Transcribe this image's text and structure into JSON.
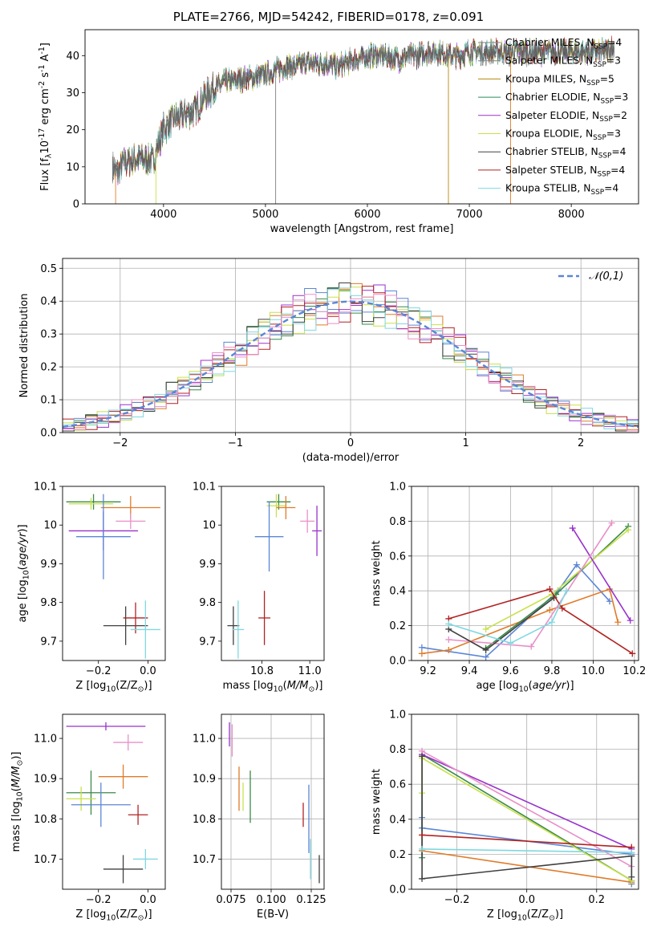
{
  "figure": {
    "title": "PLATE=2766, MJD=54242, FIBERID=0178, z=0.091"
  },
  "chart_data": [
    {
      "id": "spectrum",
      "type": "line",
      "xlabel": "wavelength [Angstrom, rest frame]",
      "ylabel": "Flux [f$_\\lambda$10$^{-17}$ erg cm$^{-2}$ s$^{-1}$ A$^{-1}$]",
      "xlim": [
        3230,
        8660
      ],
      "ylim": [
        0,
        47
      ],
      "xticks": [
        4000,
        5000,
        6000,
        7000,
        8000
      ],
      "yticks": [
        0,
        10,
        20,
        30,
        40
      ],
      "legend_position": "top-right",
      "observed": {
        "wavelength": [
          3500,
          3550,
          3600,
          3700,
          3800,
          3900,
          4000,
          4100,
          4200,
          4300,
          4400,
          4500,
          4600,
          4700,
          4800,
          4900,
          5000,
          5100,
          5200,
          5300,
          5400,
          5500,
          5600,
          5700,
          5800,
          5900,
          6000,
          6100,
          6200,
          6300,
          6400,
          6500,
          6600,
          6700,
          6800,
          6900,
          7000,
          7100,
          7200,
          7300,
          7400,
          7500,
          7600,
          7700,
          7800,
          7900,
          8000,
          8100,
          8200,
          8300,
          8400
        ],
        "flux": [
          10,
          8,
          11,
          12,
          12,
          12,
          20,
          23,
          24,
          25,
          29,
          31,
          33,
          33,
          34,
          34,
          35,
          36,
          37,
          37,
          38,
          38,
          38,
          37,
          38,
          39,
          40,
          40,
          40,
          39,
          40,
          40,
          41,
          41,
          40,
          40,
          41,
          41,
          41,
          41,
          41,
          41,
          41,
          41,
          41,
          41,
          41,
          41,
          41,
          41,
          42
        ]
      },
      "series": [
        {
          "name": "Chabrier MILES, N$_{SSP}$=4",
          "color": "#7f7f7f"
        },
        {
          "name": "Salpeter MILES, N$_{SSP}$=3",
          "color": "#7f7f7f"
        },
        {
          "name": "Kroupa MILES, N$_{SSP}$=5",
          "color": "#b8860b"
        },
        {
          "name": "Chabrier ELODIE, N$_{SSP}$=3",
          "color": "#2e8b57"
        },
        {
          "name": "Salpeter ELODIE, N$_{SSP}$=2",
          "color": "#9932cc"
        },
        {
          "name": "Kroupa ELODIE, N$_{SSP}$=3",
          "color": "#c8e04a"
        },
        {
          "name": "Chabrier STELIB, N$_{SSP}$=4",
          "color": "#404040"
        },
        {
          "name": "Salpeter STELIB, N$_{SSP}$=4",
          "color": "#b22222"
        },
        {
          "name": "Kroupa STELIB, N$_{SSP}$=4",
          "color": "#7fd8e0"
        }
      ]
    },
    {
      "id": "residuals",
      "type": "histogram",
      "xlabel": "(data-model)/error",
      "ylabel": "Normed distribution",
      "xlim": [
        -2.5,
        2.5
      ],
      "ylim": [
        0,
        0.53
      ],
      "xticks": [
        -2,
        -1,
        0,
        1,
        2
      ],
      "yticks": [
        0.0,
        0.1,
        0.2,
        0.3,
        0.4,
        0.5
      ],
      "grid": true,
      "legend_position": "top-right",
      "reference_curve": {
        "name": "$\\mathcal{N}(0,1)$",
        "color": "#5b86d6",
        "style": "dashed"
      },
      "bin_width": 0.1,
      "series": [
        {
          "color": "#e07b2a",
          "offset": 0.3
        },
        {
          "color": "#5b86d6",
          "offset": -0.6
        },
        {
          "color": "#3a8a4a",
          "offset": 1.1
        },
        {
          "color": "#9932cc",
          "offset": 2.0
        },
        {
          "color": "#c8e04a",
          "offset": -1.4
        },
        {
          "color": "#404040",
          "offset": 0.9
        },
        {
          "color": "#b22222",
          "offset": -2.3
        },
        {
          "color": "#7fd8e0",
          "offset": 2.7
        },
        {
          "color": "#e890c8",
          "offset": -0.2
        }
      ]
    },
    {
      "id": "age_vs_Z",
      "type": "errorbar",
      "xlabel": "Z [log$_{10}$(Z/Z$_\\odot$)]",
      "ylabel": "age  [log$_{10}$($age/yr$)]",
      "xlim": [
        -0.345,
        0.07
      ],
      "ylim": [
        9.65,
        10.1
      ],
      "xticks": [
        -0.2,
        0.0
      ],
      "xticklabels": [
        "−0.2",
        "0.0"
      ],
      "yticks": [
        9.7,
        9.8,
        9.9,
        10.0,
        10.1
      ],
      "points": [
        {
          "x": -0.22,
          "xerr": 0.11,
          "y": 10.06,
          "yerr": 0.02,
          "color": "#3a8a4a"
        },
        {
          "x": -0.23,
          "xerr": 0.09,
          "y": 10.055,
          "yerr": 0.015,
          "color": "#c8e04a"
        },
        {
          "x": -0.07,
          "xerr": 0.12,
          "y": 10.045,
          "yerr": 0.03,
          "color": "#e07b2a"
        },
        {
          "x": -0.07,
          "xerr": 0.06,
          "y": 10.01,
          "yerr": 0.02,
          "color": "#e890c8"
        },
        {
          "x": -0.18,
          "xerr": 0.14,
          "y": 9.985,
          "yerr": 0.05,
          "color": "#9932cc"
        },
        {
          "x": -0.18,
          "xerr": 0.11,
          "y": 9.97,
          "yerr": 0.11,
          "color": "#5b86d6"
        },
        {
          "x": -0.09,
          "xerr": 0.09,
          "y": 9.74,
          "yerr": 0.05,
          "color": "#404040"
        },
        {
          "x": -0.05,
          "xerr": 0.05,
          "y": 9.76,
          "yerr": 0.04,
          "color": "#b22222"
        },
        {
          "x": -0.01,
          "xerr": 0.06,
          "y": 9.73,
          "yerr": 0.075,
          "color": "#7fd8e0"
        }
      ]
    },
    {
      "id": "age_vs_mass",
      "type": "errorbar",
      "xlabel": "mass [log$_{10}$($M/M_\\odot$)]",
      "ylabel": "",
      "xlim": [
        10.63,
        11.06
      ],
      "ylim": [
        9.65,
        10.1
      ],
      "xticks": [
        10.8,
        11.0
      ],
      "xticklabels": [
        "10.8",
        "11.0"
      ],
      "yticks": [
        9.7,
        9.8,
        9.9,
        10.0,
        10.1
      ],
      "points": [
        {
          "x": 10.87,
          "xerr": 0.05,
          "y": 10.06,
          "yerr": 0.02,
          "color": "#3a8a4a"
        },
        {
          "x": 10.86,
          "xerr": 0.04,
          "y": 10.05,
          "yerr": 0.03,
          "color": "#c8e04a"
        },
        {
          "x": 10.9,
          "xerr": 0.04,
          "y": 10.045,
          "yerr": 0.03,
          "color": "#e07b2a"
        },
        {
          "x": 10.99,
          "xerr": 0.03,
          "y": 10.01,
          "yerr": 0.03,
          "color": "#e890c8"
        },
        {
          "x": 11.03,
          "xerr": 0.02,
          "y": 9.985,
          "yerr": 0.065,
          "color": "#9932cc"
        },
        {
          "x": 10.83,
          "xerr": 0.06,
          "y": 9.97,
          "yerr": 0.09,
          "color": "#5b86d6"
        },
        {
          "x": 10.68,
          "xerr": 0.025,
          "y": 9.74,
          "yerr": 0.05,
          "color": "#404040"
        },
        {
          "x": 10.81,
          "xerr": 0.025,
          "y": 9.76,
          "yerr": 0.07,
          "color": "#b22222"
        },
        {
          "x": 10.7,
          "xerr": 0.025,
          "y": 9.73,
          "yerr": 0.075,
          "color": "#7fd8e0"
        }
      ]
    },
    {
      "id": "weight_vs_age",
      "type": "line",
      "xlabel": "age  [log$_{10}$($age/yr$)]",
      "ylabel": "mass weight",
      "xlim": [
        9.12,
        10.22
      ],
      "ylim": [
        0.0,
        1.0
      ],
      "xticks": [
        9.2,
        9.4,
        9.6,
        9.8,
        10.0,
        10.2
      ],
      "xticklabels": [
        "9.2",
        "9.4",
        "9.6",
        "9.8",
        "10.0",
        "10.2"
      ],
      "yticks": [
        0.0,
        0.2,
        0.4,
        0.6,
        0.8,
        1.0
      ],
      "yticklabels": [
        "0.0",
        "0.2",
        "0.4",
        "0.6",
        "0.8",
        "1.0"
      ],
      "grid": true,
      "series": [
        {
          "color": "#5b86d6",
          "x": [
            9.17,
            9.48,
            9.83,
            9.92,
            10.08
          ],
          "y": [
            0.075,
            0.02,
            0.4,
            0.55,
            0.34
          ]
        },
        {
          "color": "#e07b2a",
          "x": [
            9.17,
            9.3,
            9.79,
            10.08,
            10.12
          ],
          "y": [
            0.04,
            0.06,
            0.29,
            0.41,
            0.22
          ]
        },
        {
          "color": "#3a8a4a",
          "x": [
            9.48,
            9.82,
            10.17
          ],
          "y": [
            0.07,
            0.38,
            0.77
          ]
        },
        {
          "color": "#c8e04a",
          "x": [
            9.48,
            9.8,
            10.17
          ],
          "y": [
            0.18,
            0.38,
            0.75
          ]
        },
        {
          "color": "#9932cc",
          "x": [
            9.9,
            10.18
          ],
          "y": [
            0.76,
            0.23
          ]
        },
        {
          "color": "#e890c8",
          "x": [
            9.3,
            9.7,
            10.09
          ],
          "y": [
            0.12,
            0.08,
            0.79
          ]
        },
        {
          "color": "#404040",
          "x": [
            9.3,
            9.48,
            9.81
          ],
          "y": [
            0.18,
            0.06,
            0.36
          ]
        },
        {
          "color": "#b22222",
          "x": [
            9.3,
            9.79,
            9.85,
            10.19
          ],
          "y": [
            0.24,
            0.41,
            0.3,
            0.04
          ]
        },
        {
          "color": "#7fd8e0",
          "x": [
            9.3,
            9.6,
            9.8,
            9.87
          ],
          "y": [
            0.21,
            0.1,
            0.22,
            0.4
          ]
        }
      ]
    },
    {
      "id": "mass_vs_Z",
      "type": "errorbar",
      "xlabel": "Z [log$_{10}$(Z/Z$_\\odot$)]",
      "ylabel": "mass [log$_{10}$($M/M_\\odot$)]",
      "xlim": [
        -0.345,
        0.07
      ],
      "ylim": [
        10.625,
        11.06
      ],
      "xticks": [
        -0.2,
        0.0
      ],
      "xticklabels": [
        "−0.2",
        "0.0"
      ],
      "yticks": [
        10.7,
        10.8,
        10.9,
        11.0
      ],
      "yticklabels": [
        "10.7",
        "10.8",
        "10.9",
        "11.0"
      ],
      "points": [
        {
          "x": -0.17,
          "xerr": 0.16,
          "y": 11.03,
          "yerr": 0.01,
          "color": "#9932cc"
        },
        {
          "x": -0.08,
          "xerr": 0.06,
          "y": 10.99,
          "yerr": 0.02,
          "color": "#e890c8"
        },
        {
          "x": -0.1,
          "xerr": 0.1,
          "y": 10.905,
          "yerr": 0.03,
          "color": "#e07b2a"
        },
        {
          "x": -0.23,
          "xerr": 0.1,
          "y": 10.865,
          "yerr": 0.055,
          "color": "#3a8a4a"
        },
        {
          "x": -0.27,
          "xerr": 0.06,
          "y": 10.85,
          "yerr": 0.03,
          "color": "#c8e04a"
        },
        {
          "x": -0.19,
          "xerr": 0.12,
          "y": 10.835,
          "yerr": 0.055,
          "color": "#5b86d6"
        },
        {
          "x": -0.04,
          "xerr": 0.04,
          "y": 10.81,
          "yerr": 0.025,
          "color": "#b22222"
        },
        {
          "x": -0.1,
          "xerr": 0.08,
          "y": 10.675,
          "yerr": 0.035,
          "color": "#404040"
        },
        {
          "x": -0.01,
          "xerr": 0.05,
          "y": 10.7,
          "yerr": 0.025,
          "color": "#7fd8e0"
        }
      ]
    },
    {
      "id": "mass_vs_ebv",
      "type": "errorbar",
      "xlabel": "E(B-V)",
      "ylabel": "",
      "xlim": [
        0.069,
        0.133
      ],
      "ylim": [
        10.625,
        11.06
      ],
      "xticks": [
        0.075,
        0.1,
        0.125
      ],
      "xticklabels": [
        "0.075",
        "0.100",
        "0.125"
      ],
      "yticks": [
        10.7,
        10.8,
        10.9,
        11.0
      ],
      "yticklabels": [
        "10.7",
        "10.8",
        "10.9",
        "11.0"
      ],
      "grid": true,
      "points": [
        {
          "x": 0.074,
          "y": 11.01,
          "yerr": 0.03,
          "color": "#9932cc"
        },
        {
          "x": 0.0757,
          "y": 10.995,
          "yerr": 0.04,
          "color": "#e890c8"
        },
        {
          "x": 0.08,
          "y": 10.875,
          "yerr": 0.055,
          "color": "#e07b2a"
        },
        {
          "x": 0.0825,
          "y": 10.855,
          "yerr": 0.035,
          "color": "#c8e04a"
        },
        {
          "x": 0.087,
          "y": 10.855,
          "yerr": 0.065,
          "color": "#3a8a4a"
        },
        {
          "x": 0.12,
          "y": 10.81,
          "yerr": 0.03,
          "color": "#b22222"
        },
        {
          "x": 0.1235,
          "y": 10.8,
          "yerr": 0.085,
          "color": "#5b86d6"
        },
        {
          "x": 0.1245,
          "y": 10.7,
          "yerr": 0.05,
          "color": "#7fd8e0"
        },
        {
          "x": 0.13,
          "y": 10.675,
          "yerr": 0.035,
          "color": "#404040"
        }
      ]
    },
    {
      "id": "weight_vs_Z",
      "type": "line",
      "xlabel": "Z [log$_{10}$(Z/Z$_\\odot$)]",
      "ylabel": "mass weight",
      "xlim": [
        -0.33,
        0.32
      ],
      "ylim": [
        0.0,
        1.0
      ],
      "xticks": [
        -0.2,
        0.0,
        0.2
      ],
      "xticklabels": [
        "−0.2",
        "0.0",
        "0.2"
      ],
      "yticks": [
        0.0,
        0.2,
        0.4,
        0.6,
        0.8,
        1.0
      ],
      "yticklabels": [
        "0.0",
        "0.2",
        "0.4",
        "0.6",
        "0.8",
        "1.0"
      ],
      "grid": true,
      "series": [
        {
          "color": "#5b86d6",
          "x": [
            -0.3,
            -0.3,
            0.3,
            0.3
          ],
          "y": [
            0.41,
            0.35,
            0.2,
            0.03
          ]
        },
        {
          "color": "#e07b2a",
          "x": [
            -0.3,
            0.3
          ],
          "y": [
            0.22,
            0.04
          ]
        },
        {
          "color": "#3a8a4a",
          "x": [
            -0.3,
            -0.3,
            0.3
          ],
          "y": [
            0.18,
            0.77,
            0.05
          ]
        },
        {
          "color": "#c8e04a",
          "x": [
            -0.3,
            -0.3,
            0.3
          ],
          "y": [
            0.55,
            0.75,
            0.05
          ]
        },
        {
          "color": "#9932cc",
          "x": [
            -0.3,
            0.3
          ],
          "y": [
            0.77,
            0.23
          ]
        },
        {
          "color": "#e890c8",
          "x": [
            -0.3,
            0.3
          ],
          "y": [
            0.79,
            0.13
          ]
        },
        {
          "color": "#404040",
          "x": [
            -0.3,
            -0.3,
            0.3,
            0.3
          ],
          "y": [
            0.76,
            0.06,
            0.19,
            0.07
          ]
        },
        {
          "color": "#b22222",
          "x": [
            -0.3,
            0.3
          ],
          "y": [
            0.31,
            0.24
          ]
        },
        {
          "color": "#7fd8e0",
          "x": [
            -0.3,
            0.3
          ],
          "y": [
            0.23,
            0.21
          ]
        }
      ]
    }
  ]
}
